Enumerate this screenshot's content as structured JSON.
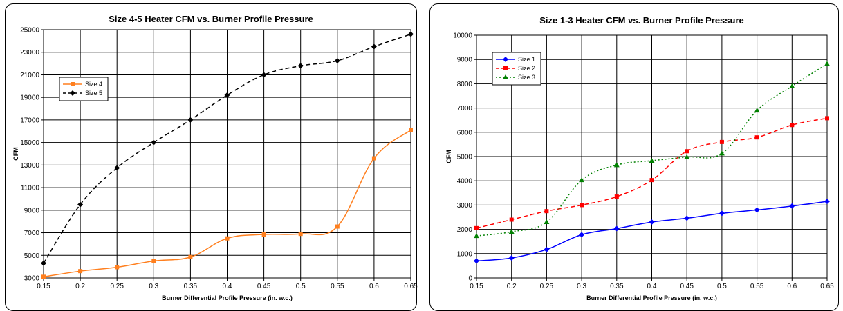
{
  "chart_data": [
    {
      "type": "line",
      "title": "Size 4-5 Heater CFM vs. Burner Profile Pressure",
      "xlabel": "Burner Differential Profile Pressure (in. w.c.)",
      "ylabel": "CFM",
      "x": [
        0.15,
        0.2,
        0.25,
        0.3,
        0.35,
        0.4,
        0.45,
        0.5,
        0.55,
        0.6,
        0.65
      ],
      "x_ticks": [
        "0.15",
        "0.2",
        "0.25",
        "0.3",
        "0.35",
        "0.4",
        "0.45",
        "0.5",
        "0.55",
        "0.6",
        "0.65"
      ],
      "ylim": [
        3000,
        25000
      ],
      "y_ticks": [
        3000,
        5000,
        7000,
        9000,
        11000,
        13000,
        15000,
        17000,
        19000,
        21000,
        23000,
        25000
      ],
      "grid": true,
      "legend": "top-left",
      "series": [
        {
          "name": "Size 4",
          "color": "#ff7f1e",
          "dash": "solid",
          "marker": "square",
          "values": [
            3100,
            3600,
            3950,
            4500,
            4850,
            6500,
            6850,
            6900,
            7550,
            13600,
            16100
          ]
        },
        {
          "name": "Size 5",
          "color": "#000000",
          "dash": "dashed",
          "marker": "diamond",
          "values": [
            4300,
            9500,
            12750,
            15000,
            17000,
            19200,
            21000,
            21800,
            22250,
            23500,
            24600
          ]
        }
      ]
    },
    {
      "type": "line",
      "title": "Size 1-3 Heater CFM vs. Burner Profile Pressure",
      "xlabel": "Burner Differential Profile Pressure (in. w.c.)",
      "ylabel": "CFM",
      "x": [
        0.15,
        0.2,
        0.25,
        0.3,
        0.35,
        0.4,
        0.45,
        0.5,
        0.55,
        0.6,
        0.65
      ],
      "x_ticks": [
        "0.15",
        "0.2",
        "0.25",
        "0.3",
        "0.35",
        "0.4",
        "0.45",
        "0.5",
        "0.55",
        "0.6",
        "0.65"
      ],
      "ylim": [
        0,
        10000
      ],
      "y_ticks": [
        0,
        1000,
        2000,
        3000,
        4000,
        5000,
        6000,
        7000,
        8000,
        9000,
        10000
      ],
      "grid": true,
      "legend": "top-left",
      "series": [
        {
          "name": "Size 1",
          "color": "#0000ff",
          "dash": "solid",
          "marker": "diamond",
          "values": [
            700,
            820,
            1170,
            1780,
            2030,
            2300,
            2460,
            2660,
            2800,
            2960,
            3150
          ]
        },
        {
          "name": "Size 2",
          "color": "#ff0000",
          "dash": "dashed",
          "marker": "square",
          "values": [
            2050,
            2400,
            2750,
            3000,
            3350,
            4030,
            5220,
            5600,
            5790,
            6300,
            6580
          ]
        },
        {
          "name": "Size 3",
          "color": "#008000",
          "dash": "dotted",
          "marker": "triangle",
          "values": [
            1730,
            1900,
            2300,
            4030,
            4650,
            4830,
            4980,
            5130,
            6900,
            7900,
            8820
          ]
        }
      ]
    }
  ]
}
